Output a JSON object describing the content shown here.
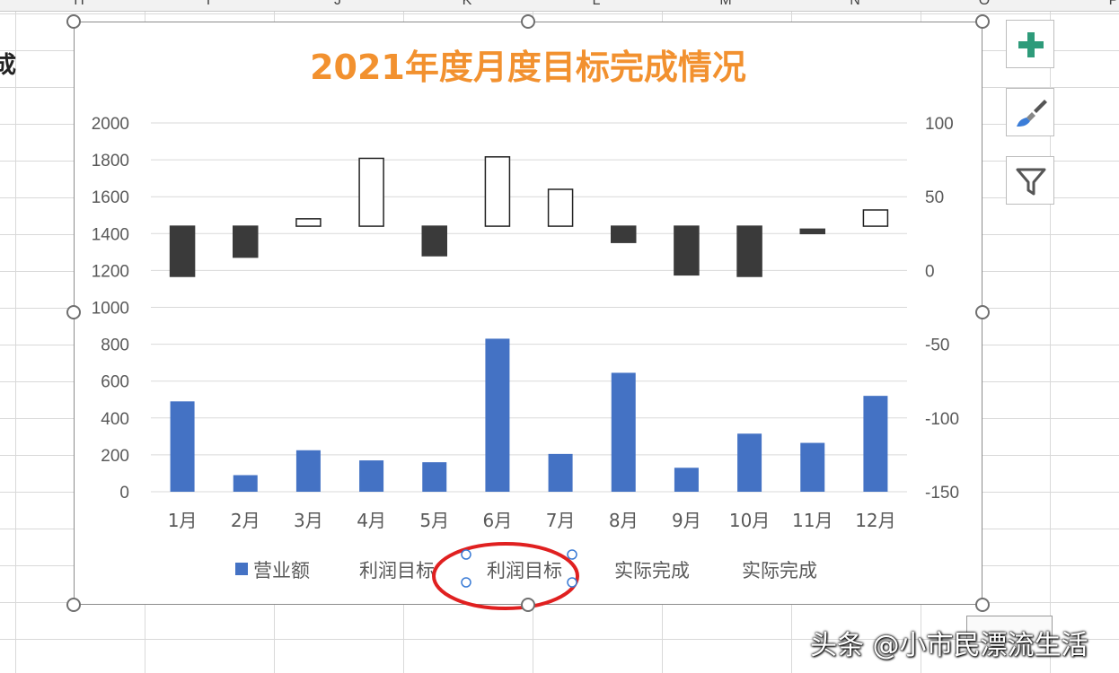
{
  "spreadsheet": {
    "column_letters": [
      "H",
      "I",
      "J",
      "K",
      "L",
      "M",
      "N",
      "O",
      "P"
    ],
    "left_cell_text": "成"
  },
  "chart_data": {
    "type": "bar",
    "title": "2021年度月度目标完成情况",
    "categories": [
      "1月",
      "2月",
      "3月",
      "4月",
      "5月",
      "6月",
      "7月",
      "8月",
      "9月",
      "10月",
      "11月",
      "12月"
    ],
    "series": [
      {
        "name": "营业额",
        "axis": "primary",
        "values": [
          490,
          90,
          225,
          170,
          160,
          830,
          205,
          645,
          130,
          315,
          265,
          520
        ]
      },
      {
        "name": "利润目标",
        "axis": "secondary",
        "hidden": true
      },
      {
        "name": "利润目标",
        "axis": "secondary",
        "hidden": true
      },
      {
        "name": "实际完成",
        "axis": "secondary",
        "style": "floating",
        "low": [
          -4,
          9,
          30,
          30,
          10,
          30,
          30,
          19,
          -3,
          -4,
          25,
          30
        ],
        "high": [
          30,
          30,
          35,
          76,
          30,
          77,
          55,
          30,
          30,
          30,
          28,
          41
        ]
      },
      {
        "name": "实际完成",
        "axis": "secondary",
        "hidden": true
      }
    ],
    "y_primary": {
      "min": 0,
      "max": 2000,
      "ticks": [
        0,
        200,
        400,
        600,
        800,
        1000,
        1200,
        1400,
        1600,
        1800,
        2000
      ]
    },
    "y_secondary": {
      "min": -150,
      "max": 100,
      "ticks": [
        -150,
        -100,
        -50,
        0,
        50,
        100
      ]
    },
    "grid": true,
    "legend": "bottom",
    "colors": {
      "bar": "#4472c4",
      "loss": "#3a3a3a",
      "gain_fill": "#ffffff",
      "gain_stroke": "#222222",
      "title": "#f2912f",
      "highlight": "#e02020"
    },
    "annotation": "red ellipse around second legend entry 利润目标"
  },
  "toolbar": {
    "buttons": [
      {
        "name": "chart-elements-button",
        "icon": "plus-icon"
      },
      {
        "name": "chart-styles-button",
        "icon": "paintbrush-icon"
      },
      {
        "name": "chart-filters-button",
        "icon": "funnel-icon"
      }
    ]
  },
  "watermark": {
    "text": "头条 @小市民漂流生活"
  }
}
